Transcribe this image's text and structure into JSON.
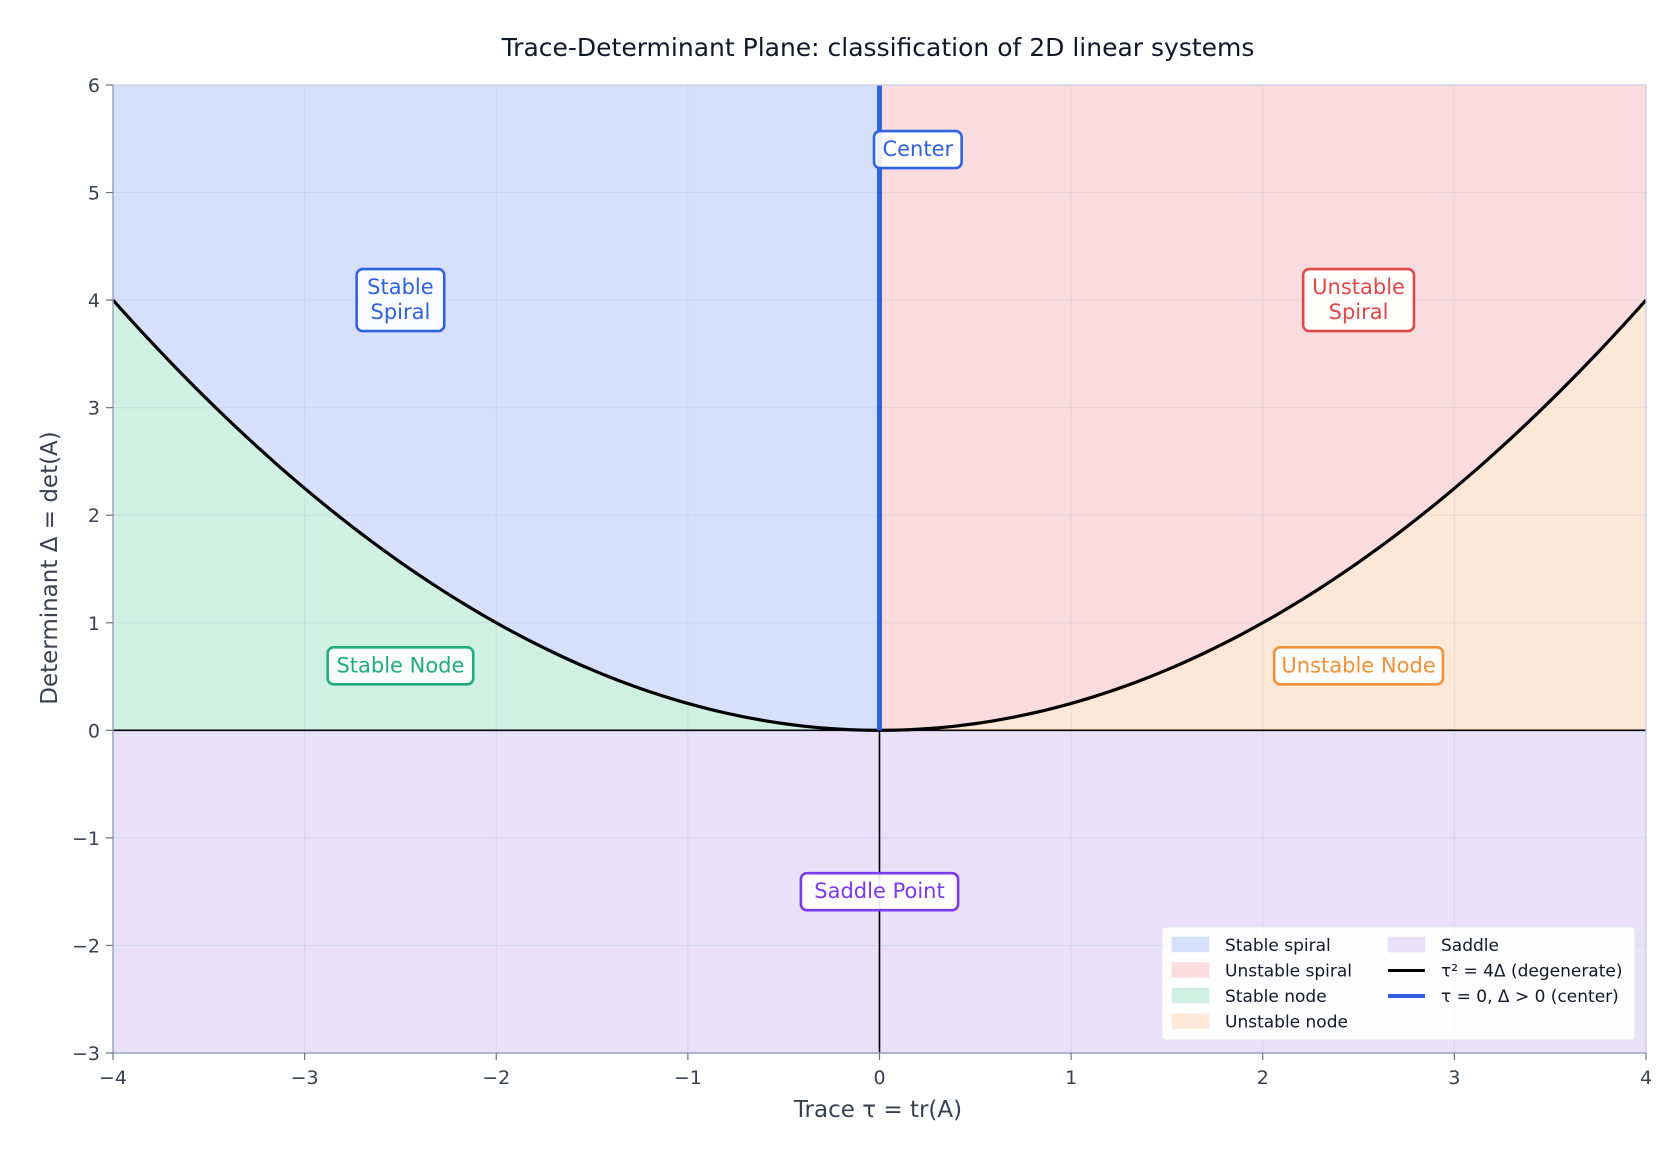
{
  "chart_data": {
    "type": "area",
    "title": "Trace-Determinant Plane:  classification of 2D linear systems",
    "xlabel": "Trace  τ = tr(A)",
    "ylabel": "Determinant  Δ = det(A)",
    "xlim": [
      -4,
      4
    ],
    "ylim": [
      -3,
      6
    ],
    "xticks": [
      -4,
      -3,
      -2,
      -1,
      0,
      1,
      2,
      3,
      4
    ],
    "yticks": [
      -3,
      -2,
      -1,
      0,
      1,
      2,
      3,
      4,
      5,
      6
    ],
    "xtick_labels": [
      "−4",
      "−3",
      "−2",
      "−1",
      "0",
      "1",
      "2",
      "3",
      "4"
    ],
    "ytick_labels": [
      "−3",
      "−2",
      "−1",
      "0",
      "1",
      "2",
      "3",
      "4",
      "5",
      "6"
    ],
    "grid": true,
    "legend_position": "lower-right",
    "regions": [
      {
        "key": "stable_spiral",
        "name": "Stable spiral",
        "color": "#d6e0fa",
        "rule": "tau<0, delta>tau^2/4"
      },
      {
        "key": "unstable_spiral",
        "name": "Unstable spiral",
        "color": "#fadcdf",
        "rule": "tau>0, delta>tau^2/4"
      },
      {
        "key": "stable_node",
        "name": "Stable node",
        "color": "#d0f0e3",
        "rule": "tau<0, 0<delta<tau^2/4"
      },
      {
        "key": "unstable_node",
        "name": "Unstable node",
        "color": "#fde8d7",
        "rule": "tau>0, 0<delta<tau^2/4"
      },
      {
        "key": "saddle",
        "name": "Saddle",
        "color": "#e9e0fa",
        "rule": "delta<0"
      }
    ],
    "series": [
      {
        "name": "τ² = 4Δ  (degenerate)",
        "type": "line",
        "color": "#000000",
        "equation": "delta = tau^2/4",
        "x": [
          -4,
          -3,
          -2,
          -1,
          0,
          1,
          2,
          3,
          4
        ],
        "y": [
          4,
          2.25,
          1,
          0.25,
          0,
          0.25,
          1,
          2.25,
          4
        ]
      },
      {
        "name": "τ = 0, Δ > 0  (center)",
        "type": "line",
        "color": "#2f62e0",
        "x": [
          0,
          0
        ],
        "y": [
          0,
          6
        ]
      }
    ],
    "annotations": [
      {
        "text": "Center",
        "x": 0.2,
        "y": 5.4,
        "color": "#2f62e0"
      },
      {
        "text": "Stable\nSpiral",
        "x": -2.5,
        "y": 4.0,
        "color": "#2f62e0"
      },
      {
        "text": "Unstable\nSpiral",
        "x": 2.5,
        "y": 4.0,
        "color": "#e04848"
      },
      {
        "text": "Stable Node",
        "x": -2.5,
        "y": 0.6,
        "color": "#1fae7a"
      },
      {
        "text": "Unstable Node",
        "x": 2.5,
        "y": 0.6,
        "color": "#f0923a"
      },
      {
        "text": "Saddle Point",
        "x": 0.0,
        "y": -1.5,
        "color": "#7c3aed"
      }
    ],
    "legend": [
      {
        "label": "Stable spiral",
        "kind": "patch",
        "color": "#d6e0fa"
      },
      {
        "label": "Unstable spiral",
        "kind": "patch",
        "color": "#fadcdf"
      },
      {
        "label": "Stable node",
        "kind": "patch",
        "color": "#d0f0e3"
      },
      {
        "label": "Unstable node",
        "kind": "patch",
        "color": "#fde8d7"
      },
      {
        "label": "Saddle",
        "kind": "patch",
        "color": "#e9e0fa"
      },
      {
        "label": "τ² = 4Δ  (degenerate)",
        "kind": "line",
        "color": "#000000"
      },
      {
        "label": "τ = 0, Δ > 0  (center)",
        "kind": "line",
        "color": "#2f62e0"
      }
    ]
  }
}
